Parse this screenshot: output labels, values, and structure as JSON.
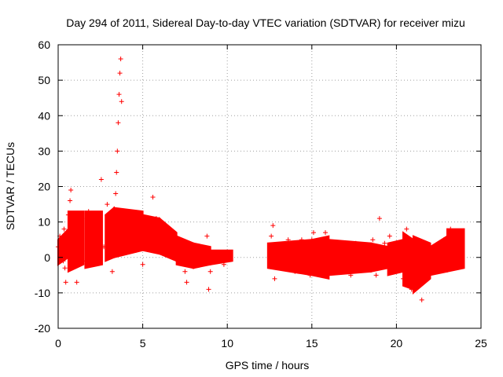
{
  "chart_data": {
    "type": "scatter",
    "title": "Day 294 of 2011, Sidereal Day-to-day VTEC variation (SDTVAR) for receiver mizu",
    "xlabel": "GPS time / hours",
    "ylabel": "SDTVAR / TECUs",
    "xlim": [
      0,
      25
    ],
    "ylim": [
      -20,
      60
    ],
    "xticks": [
      "0",
      "5",
      "10",
      "15",
      "20",
      "25"
    ],
    "yticks": [
      "-20",
      "-10",
      "0",
      "10",
      "20",
      "30",
      "40",
      "50",
      "60"
    ],
    "grid": true,
    "marker": "+",
    "color": "#ff0000",
    "series": [
      {
        "name": "SDTVAR",
        "points": [
          [
            0.0,
            3
          ],
          [
            0.1,
            6
          ],
          [
            0.2,
            1
          ],
          [
            0.3,
            -1
          ],
          [
            0.35,
            8
          ],
          [
            0.4,
            -3
          ],
          [
            0.45,
            -7
          ],
          [
            0.5,
            4
          ],
          [
            0.6,
            12
          ],
          [
            0.7,
            16
          ],
          [
            0.75,
            19
          ],
          [
            0.8,
            9
          ],
          [
            0.9,
            -1
          ],
          [
            1.0,
            7
          ],
          [
            1.1,
            -7
          ],
          [
            1.2,
            12
          ],
          [
            1.3,
            3
          ],
          [
            1.4,
            11
          ],
          [
            1.5,
            -1
          ],
          [
            1.7,
            8
          ],
          [
            1.8,
            13
          ],
          [
            2.0,
            4
          ],
          [
            2.1,
            -2
          ],
          [
            2.3,
            11
          ],
          [
            2.5,
            5
          ],
          [
            2.55,
            22
          ],
          [
            2.7,
            3
          ],
          [
            2.9,
            15
          ],
          [
            3.0,
            9
          ],
          [
            3.1,
            1
          ],
          [
            3.2,
            -4
          ],
          [
            3.3,
            13
          ],
          [
            3.4,
            18
          ],
          [
            3.45,
            24
          ],
          [
            3.5,
            30
          ],
          [
            3.55,
            38
          ],
          [
            3.6,
            46
          ],
          [
            3.65,
            52
          ],
          [
            3.7,
            56
          ],
          [
            3.75,
            44
          ],
          [
            3.8,
            10
          ],
          [
            3.9,
            2
          ],
          [
            4.0,
            12
          ],
          [
            4.2,
            4
          ],
          [
            4.4,
            9
          ],
          [
            4.6,
            2
          ],
          [
            4.8,
            12
          ],
          [
            5.0,
            -2
          ],
          [
            5.1,
            9
          ],
          [
            5.3,
            5
          ],
          [
            5.5,
            3
          ],
          [
            5.6,
            17
          ],
          [
            5.8,
            11
          ],
          [
            6.0,
            7
          ],
          [
            6.3,
            6
          ],
          [
            6.6,
            2
          ],
          [
            6.9,
            5
          ],
          [
            7.1,
            0
          ],
          [
            7.3,
            3
          ],
          [
            7.5,
            -4
          ],
          [
            7.6,
            -7
          ],
          [
            7.8,
            -1
          ],
          [
            8.0,
            2
          ],
          [
            8.3,
            0
          ],
          [
            8.6,
            -1
          ],
          [
            8.8,
            6
          ],
          [
            8.9,
            -9
          ],
          [
            9.0,
            -4
          ],
          [
            9.2,
            1
          ],
          [
            9.5,
            0
          ],
          [
            9.8,
            -2
          ],
          [
            10.1,
            1
          ],
          [
            12.5,
            -2
          ],
          [
            12.6,
            6
          ],
          [
            12.7,
            9
          ],
          [
            12.8,
            -6
          ],
          [
            13.0,
            3
          ],
          [
            13.3,
            -3
          ],
          [
            13.6,
            5
          ],
          [
            14.0,
            -4
          ],
          [
            14.4,
            5
          ],
          [
            14.7,
            3
          ],
          [
            14.9,
            -5
          ],
          [
            15.0,
            5
          ],
          [
            15.1,
            7
          ],
          [
            15.3,
            0
          ],
          [
            15.6,
            -4
          ],
          [
            15.8,
            7
          ],
          [
            16.0,
            2
          ],
          [
            16.3,
            -4
          ],
          [
            16.6,
            3
          ],
          [
            17.0,
            1
          ],
          [
            17.3,
            -5
          ],
          [
            17.6,
            4
          ],
          [
            18.0,
            2
          ],
          [
            18.2,
            -3
          ],
          [
            18.6,
            5
          ],
          [
            18.8,
            -5
          ],
          [
            19.0,
            11
          ],
          [
            19.3,
            4
          ],
          [
            19.6,
            6
          ],
          [
            19.8,
            -3
          ],
          [
            20.0,
            3
          ],
          [
            20.2,
            -1
          ],
          [
            20.4,
            -6
          ],
          [
            20.6,
            8
          ],
          [
            20.8,
            3
          ],
          [
            20.9,
            -9
          ],
          [
            21.1,
            5
          ],
          [
            21.3,
            -4
          ],
          [
            21.5,
            -12
          ],
          [
            21.6,
            4
          ],
          [
            21.8,
            -3
          ],
          [
            22.0,
            2
          ],
          [
            22.2,
            -4
          ],
          [
            22.5,
            0
          ],
          [
            22.8,
            5
          ],
          [
            23.0,
            -3
          ],
          [
            23.2,
            8
          ],
          [
            23.4,
            6
          ],
          [
            23.6,
            -2
          ],
          [
            23.8,
            7
          ]
        ]
      }
    ],
    "bands": [
      {
        "x": [
          0.0,
          0.6
        ],
        "lo": [
          -2,
          0
        ],
        "hi": [
          5,
          8
        ]
      },
      {
        "x": [
          0.6,
          1.5
        ],
        "lo": [
          -4,
          -2
        ],
        "hi": [
          13,
          13
        ]
      },
      {
        "x": [
          1.6,
          2.6
        ],
        "lo": [
          -3,
          -2
        ],
        "hi": [
          13,
          13
        ]
      },
      {
        "x": [
          2.8,
          3.3
        ],
        "lo": [
          -1,
          0
        ],
        "hi": [
          12,
          14
        ]
      },
      {
        "x": [
          3.3,
          5.0
        ],
        "lo": [
          0,
          2
        ],
        "hi": [
          14,
          13
        ]
      },
      {
        "x": [
          5.0,
          6.0
        ],
        "lo": [
          2,
          1
        ],
        "hi": [
          12,
          11
        ]
      },
      {
        "x": [
          6.0,
          7.0
        ],
        "lo": [
          1,
          -1
        ],
        "hi": [
          11,
          7
        ]
      },
      {
        "x": [
          7.0,
          8.0
        ],
        "lo": [
          -2,
          -3
        ],
        "hi": [
          6,
          4
        ]
      },
      {
        "x": [
          8.0,
          9.0
        ],
        "lo": [
          -3,
          -2
        ],
        "hi": [
          4,
          3
        ]
      },
      {
        "x": [
          9.0,
          10.3
        ],
        "lo": [
          -2,
          -1
        ],
        "hi": [
          2,
          2
        ]
      },
      {
        "x": [
          12.4,
          15.0
        ],
        "lo": [
          -3,
          -5
        ],
        "hi": [
          4,
          5
        ]
      },
      {
        "x": [
          15.0,
          16.0
        ],
        "lo": [
          -5,
          -6
        ],
        "hi": [
          5,
          6
        ]
      },
      {
        "x": [
          16.0,
          18.5
        ],
        "lo": [
          -5,
          -4
        ],
        "hi": [
          5,
          4
        ]
      },
      {
        "x": [
          18.5,
          19.5
        ],
        "lo": [
          -4,
          -3
        ],
        "hi": [
          4,
          3
        ]
      },
      {
        "x": [
          19.5,
          20.4
        ],
        "lo": [
          -5,
          -4
        ],
        "hi": [
          4,
          5
        ]
      },
      {
        "x": [
          20.4,
          21.0
        ],
        "lo": [
          -8,
          -9
        ],
        "hi": [
          7,
          5
        ]
      },
      {
        "x": [
          21.0,
          22.0
        ],
        "lo": [
          -10,
          -6
        ],
        "hi": [
          6,
          4
        ]
      },
      {
        "x": [
          22.0,
          23.0
        ],
        "lo": [
          -5,
          -4
        ],
        "hi": [
          3,
          6
        ]
      },
      {
        "x": [
          23.0,
          24.0
        ],
        "lo": [
          -4,
          -3
        ],
        "hi": [
          8,
          8
        ]
      }
    ]
  }
}
